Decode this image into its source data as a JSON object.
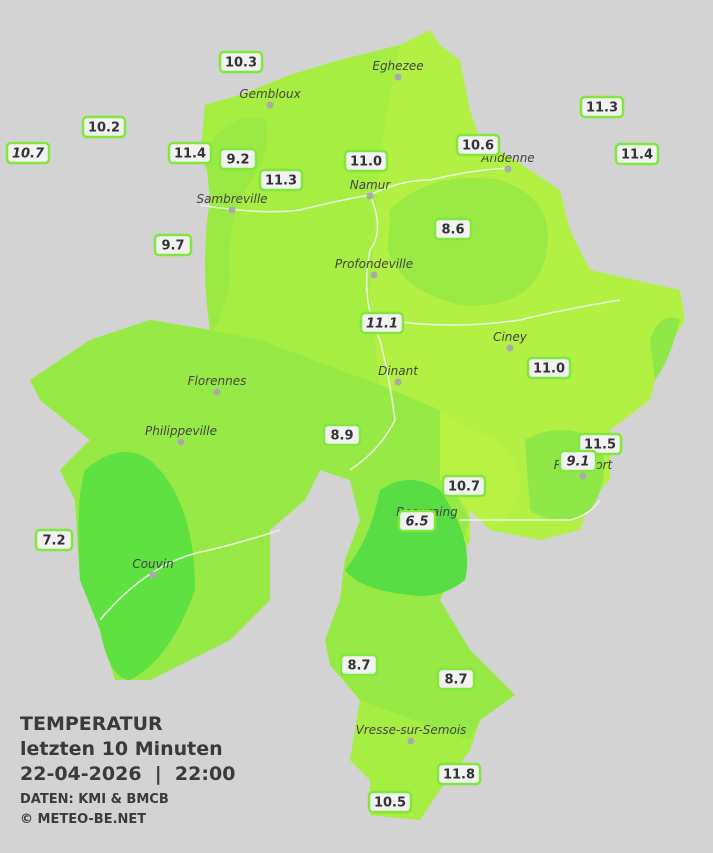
{
  "legend": {
    "title": "TEMPERATUR",
    "subtitle": "letzten 10 Minuten",
    "datetime": "22-04-2026  |  22:00",
    "source": "DATEN: KMI & BMCB",
    "copyright": "© METEO-BE.NET"
  },
  "cities": [
    "Eghezee",
    "Gembloux",
    "Andenne",
    "Namur",
    "Sambreville",
    "Profondeville",
    "Ciney",
    "Dinant",
    "Florennes",
    "Philippeville",
    "Rochefort",
    "Beauraing",
    "Couvin",
    "Vresse-sur-Semois"
  ],
  "stations": [
    {
      "label": "10.3",
      "italic": false
    },
    {
      "label": "10.2",
      "italic": false
    },
    {
      "label": "10.7",
      "italic": true
    },
    {
      "label": "11.4",
      "italic": false
    },
    {
      "label": "9.2",
      "italic": false
    },
    {
      "label": "11.3",
      "italic": false
    },
    {
      "label": "11.0",
      "italic": false
    },
    {
      "label": "10.6",
      "italic": false
    },
    {
      "label": "11.3",
      "italic": false
    },
    {
      "label": "11.4",
      "italic": false
    },
    {
      "label": "9.7",
      "italic": false
    },
    {
      "label": "8.6",
      "italic": false
    },
    {
      "label": "11.1",
      "italic": true
    },
    {
      "label": "11.0",
      "italic": false
    },
    {
      "label": "8.9",
      "italic": false
    },
    {
      "label": "11.5",
      "italic": false
    },
    {
      "label": "9.1",
      "italic": true
    },
    {
      "label": "10.7",
      "italic": false
    },
    {
      "label": "6.5",
      "italic": true
    },
    {
      "label": "7.2",
      "italic": false
    },
    {
      "label": "8.7",
      "italic": false
    },
    {
      "label": "8.7",
      "italic": false
    },
    {
      "label": "11.8",
      "italic": false
    },
    {
      "label": "10.5",
      "italic": false
    }
  ]
}
